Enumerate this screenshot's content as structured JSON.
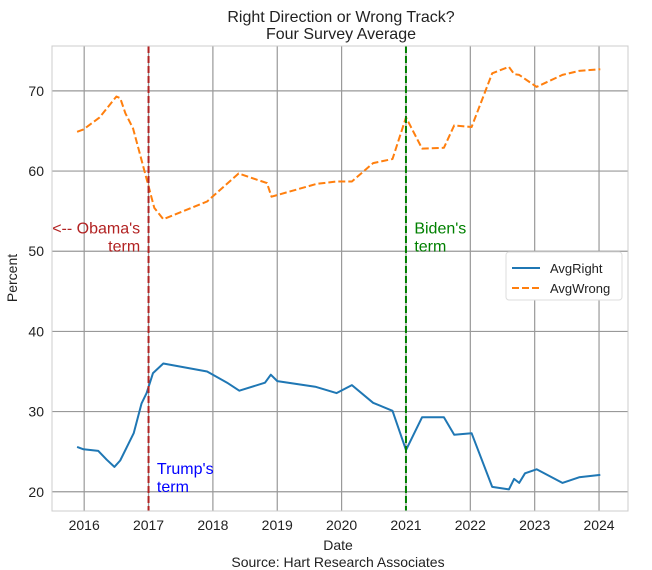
{
  "chart_data": {
    "type": "line",
    "title": "Right Direction or Wrong Track?",
    "subtitle": "Four Survey Average",
    "xlabel": "Date",
    "ylabel": "Percent",
    "source": "Source: Hart Research Associates",
    "xlim": [
      2015.5,
      2024.45
    ],
    "ylim": [
      17.6,
      75.6
    ],
    "xticks": [
      2016,
      2017,
      2018,
      2019,
      2020,
      2021,
      2022,
      2023,
      2024
    ],
    "xtick_labels": [
      "2016",
      "2017",
      "2018",
      "2019",
      "2020",
      "2021",
      "2022",
      "2023",
      "2024"
    ],
    "yticks": [
      20,
      30,
      40,
      50,
      60,
      70
    ],
    "ytick_labels": [
      "20",
      "30",
      "40",
      "50",
      "60",
      "70"
    ],
    "grid": true,
    "legend_position": "center-right",
    "series": [
      {
        "name": "AvgRight",
        "color": "#1f77b4",
        "style": "solid",
        "x": [
          2015.89,
          2015.99,
          2016.22,
          2016.35,
          2016.47,
          2016.56,
          2016.77,
          2016.89,
          2016.97,
          2017.07,
          2017.23,
          2017.91,
          2018.22,
          2018.41,
          2018.81,
          2018.9,
          2019.0,
          2019.59,
          2019.92,
          2020.16,
          2020.49,
          2020.79,
          2021.0,
          2021.25,
          2021.59,
          2021.75,
          2022.02,
          2022.34,
          2022.6,
          2022.68,
          2022.76,
          2022.85,
          2023.03,
          2023.43,
          2023.69,
          2024.02
        ],
        "y": [
          25.6,
          25.3,
          25.1,
          24.0,
          23.1,
          23.9,
          27.3,
          31.0,
          32.3,
          34.8,
          36.0,
          35.0,
          33.6,
          32.6,
          33.6,
          34.6,
          33.8,
          33.1,
          32.3,
          33.3,
          31.1,
          30.1,
          25.2,
          29.3,
          29.3,
          27.1,
          27.3,
          20.6,
          20.3,
          21.6,
          21.1,
          22.3,
          22.8,
          21.1,
          21.8,
          22.1
        ]
      },
      {
        "name": "AvgWrong",
        "color": "#ff7f0e",
        "style": "dashed",
        "x": [
          2015.89,
          2015.99,
          2016.24,
          2016.5,
          2016.56,
          2016.64,
          2016.76,
          2016.96,
          2017.09,
          2017.23,
          2017.91,
          2018.4,
          2018.84,
          2018.91,
          2019.61,
          2019.92,
          2020.16,
          2020.49,
          2020.79,
          2021.0,
          2021.25,
          2021.59,
          2021.75,
          2022.02,
          2022.34,
          2022.6,
          2022.68,
          2022.76,
          2023.03,
          2023.43,
          2023.69,
          2024.02
        ],
        "y": [
          64.9,
          65.2,
          66.7,
          69.3,
          69.1,
          67.2,
          65.3,
          59.3,
          55.4,
          54.0,
          56.2,
          59.7,
          58.5,
          56.8,
          58.4,
          58.7,
          58.7,
          61.0,
          61.5,
          66.7,
          62.8,
          62.9,
          65.7,
          65.5,
          72.2,
          73.0,
          72.1,
          72.0,
          70.5,
          72.0,
          72.5,
          72.7
        ]
      }
    ],
    "vlines": [
      {
        "x": 2017.0,
        "color": "#b22222"
      },
      {
        "x": 2021.0,
        "color": "#008000"
      }
    ],
    "annotations": [
      {
        "lines": [
          "<-- Obama's",
          "term"
        ],
        "x": 2016.87,
        "y": 52.2,
        "align": "right",
        "color": "#b22222"
      },
      {
        "lines": [
          "Trump's",
          "term"
        ],
        "x": 2017.13,
        "y": 22.2,
        "align": "left",
        "color": "#0000ff"
      },
      {
        "lines": [
          "Biden's",
          "term"
        ],
        "x": 2021.13,
        "y": 52.2,
        "align": "left",
        "color": "#008000"
      }
    ]
  }
}
